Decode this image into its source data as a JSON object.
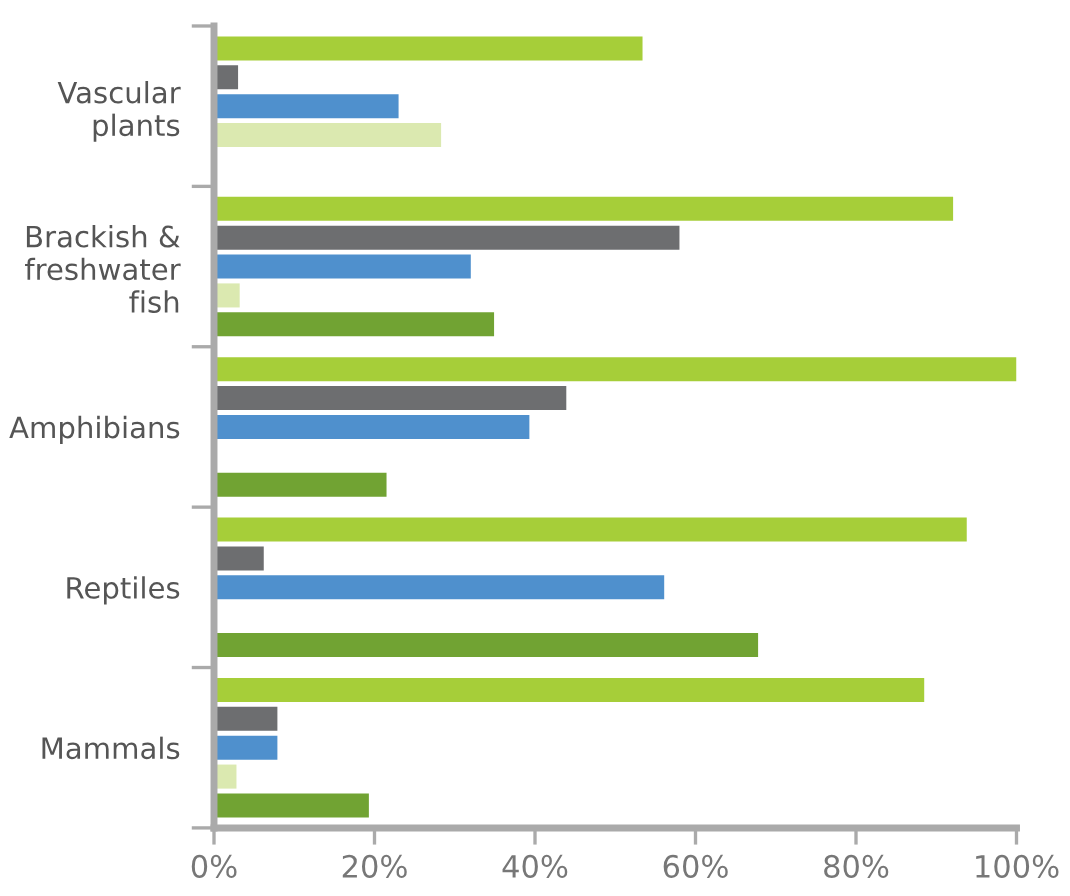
{
  "chart_data": {
    "type": "bar",
    "orientation": "horizontal",
    "categories": [
      "Vascular\nplants",
      "Brackish &\nfreshwater\nfish",
      "Amphibians",
      "Reptiles",
      "Mammals"
    ],
    "series": [
      {
        "color": "#a6ce39",
        "values": [
          53.4,
          92.1,
          100,
          93.8,
          88.5
        ]
      },
      {
        "color": "#6d6e70",
        "values": [
          3.0,
          58.0,
          43.9,
          6.2,
          7.9
        ]
      },
      {
        "color": "#4f90cd",
        "values": [
          23.0,
          32.0,
          39.3,
          56.1,
          7.9
        ]
      },
      {
        "color": "#dbe9b0",
        "values": [
          28.3,
          3.2,
          null,
          null,
          2.8
        ]
      },
      {
        "color": "#71a333",
        "values": [
          null,
          34.9,
          21.5,
          67.8,
          19.3
        ]
      }
    ],
    "xlim": [
      0,
      100
    ],
    "xticks": [
      {
        "value": 0,
        "label": "0%"
      },
      {
        "value": 20,
        "label": "20%"
      },
      {
        "value": 40,
        "label": "40%"
      },
      {
        "value": 60,
        "label": "60%"
      },
      {
        "value": 80,
        "label": "80%"
      },
      {
        "value": 100,
        "label": "100%"
      }
    ],
    "grid": false,
    "legend": false
  }
}
